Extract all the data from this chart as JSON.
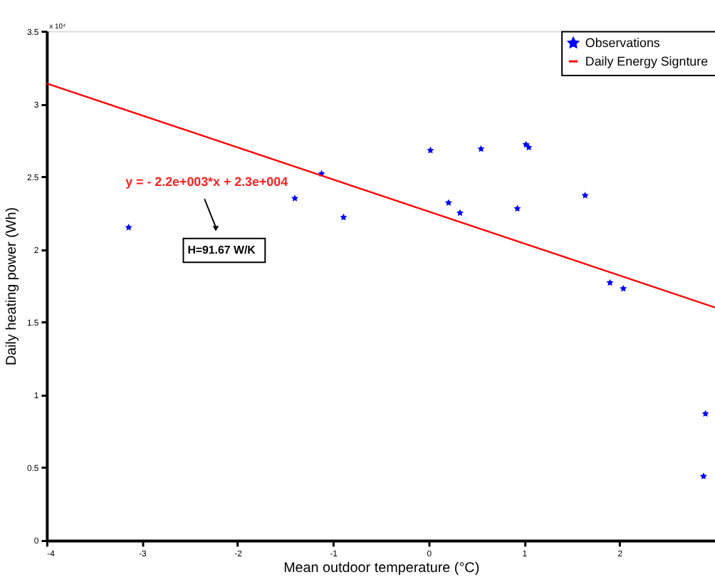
{
  "chart_data": {
    "type": "scatter",
    "xlabel": "Mean outdoor temperature (°C)",
    "ylabel": "Daily heating power (Wh)",
    "xlim": [
      -4,
      3
    ],
    "xticks": [
      -4,
      -3,
      -2,
      -1,
      0,
      1,
      2
    ],
    "ylim": [
      0,
      3.5
    ],
    "yticks": [
      0,
      0.5,
      1,
      1.5,
      2,
      2.5,
      3,
      3.5
    ],
    "legend": "top right",
    "grid": false,
    "annotations": [
      "x 10⁴",
      "y = - 2.2e+003*x + 2.3e+004",
      "H=91.67 W/K"
    ],
    "series": [
      {
        "name": "Observations",
        "color": "#0000ff",
        "type": "scatter",
        "marker": "star",
        "x": [
          -3.14,
          -1.4,
          -1.12,
          -0.89,
          0.02,
          0.21,
          0.33,
          0.55,
          0.93,
          1.02,
          1.05,
          1.64,
          1.9,
          2.04,
          2.9,
          2.88
        ],
        "values": [
          2.15,
          2.35,
          2.52,
          2.22,
          2.68,
          2.32,
          2.25,
          2.69,
          2.28,
          2.72,
          2.7,
          2.37,
          1.77,
          1.73,
          0.87,
          0.44
        ]
      },
      {
        "name": "Daily Energy Signture",
        "color": "#ff0000",
        "type": "line",
        "line_style": "solid",
        "marker": "none",
        "x": [
          -4,
          3
        ],
        "values": [
          3.14,
          1.6
        ]
      }
    ]
  }
}
